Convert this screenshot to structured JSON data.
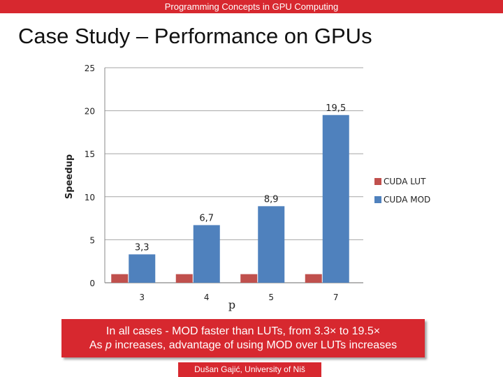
{
  "header": {
    "course": "Programming Concepts in GPU Computing"
  },
  "slide": {
    "title": "Case Study – Performance on GPUs"
  },
  "chart_data": {
    "type": "bar",
    "categories": [
      "3",
      "4",
      "5",
      "7"
    ],
    "series": [
      {
        "name": "CUDA LUT",
        "color": "#c0504d",
        "values": [
          1,
          1,
          1,
          1
        ],
        "labels": []
      },
      {
        "name": "CUDA MOD",
        "color": "#4f81bd",
        "values": [
          3.3,
          6.7,
          8.9,
          19.5
        ],
        "labels": [
          "3,3",
          "6,7",
          "8,9",
          "19,5"
        ]
      }
    ],
    "title": "",
    "xlabel": "p",
    "ylabel": "Speedup",
    "ylim": [
      0,
      25
    ],
    "yticks": [
      "0",
      "5",
      "10",
      "15",
      "20",
      "25"
    ],
    "grid": true,
    "legend": "right"
  },
  "callout": {
    "line1": "In all cases - MOD faster than LUTs, from 3.3× to 19.5×",
    "line2_pre": "As ",
    "line2_var": "p",
    "line2_post": " increases, advantage of using MOD over LUTs increases"
  },
  "footer": {
    "author": "Dušan Gajić, University of Niš"
  }
}
